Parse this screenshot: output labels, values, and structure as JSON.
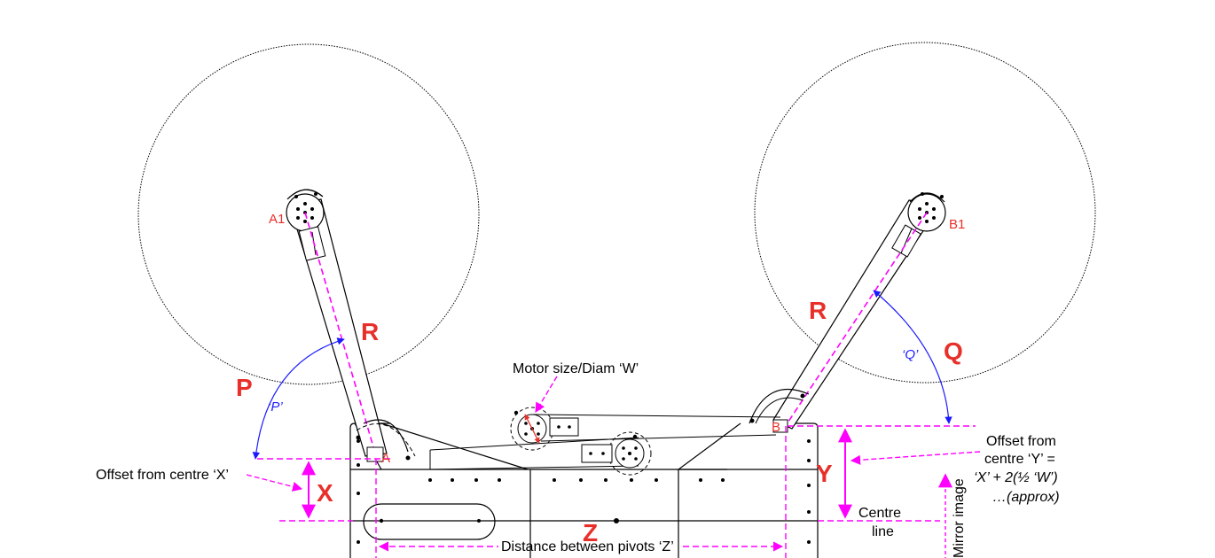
{
  "labels": {
    "point_a1": "A1",
    "point_b1": "B1",
    "point_a": "A",
    "point_b": "B",
    "big_r_left": "R",
    "big_r_right": "R",
    "big_p": "P",
    "big_q": "Q",
    "big_x": "X",
    "big_y": "Y",
    "big_z": "Z",
    "angle_p": "‘P’",
    "angle_q": "‘Q’",
    "motor_size": "Motor size/Diam ‘W’",
    "offset_x": "Offset from centre ‘X’",
    "offset_y_line1": "Offset from",
    "offset_y_line2": "centre ‘Y’ =",
    "offset_y_line3": "‘X’ + 2(½ ‘W’)",
    "offset_y_line4": "…(approx)",
    "centre_line_1": "Centre",
    "centre_line_2": "line",
    "distance_pivots": "Distance between pivots ‘Z’",
    "mirror_image": "Mirror image"
  },
  "colors": {
    "dimension": "#ff00ff",
    "big_letters": "#e8302a",
    "angle": "#1a1aff",
    "ink": "#000000"
  }
}
